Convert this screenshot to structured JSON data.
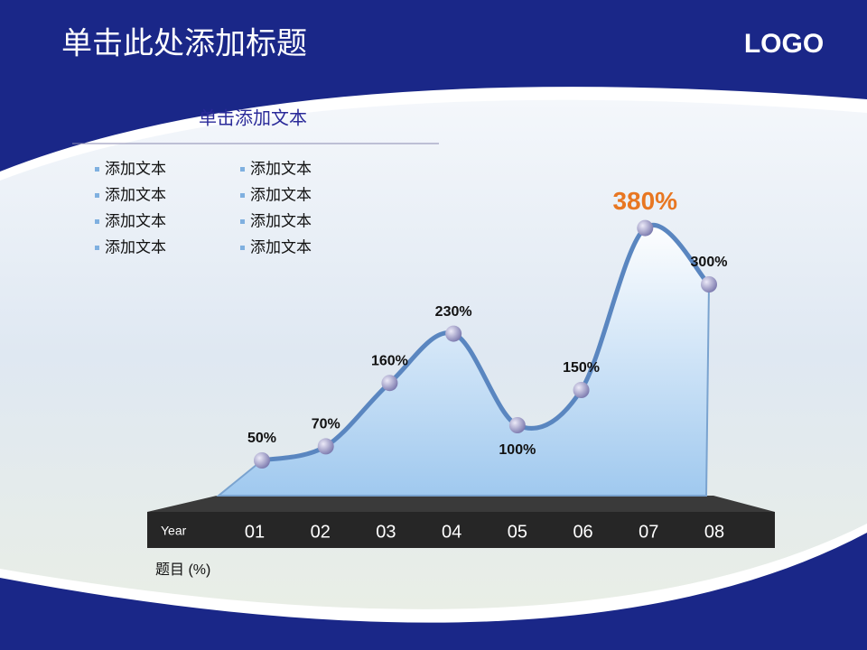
{
  "header": {
    "title": "单击此处添加标题",
    "logo": "LOGO"
  },
  "text_block": {
    "heading": "单击添加文本",
    "items": [
      "添加文本",
      "添加文本",
      "添加文本",
      "添加文本",
      "添加文本",
      "添加文本",
      "添加文本",
      "添加文本"
    ]
  },
  "chart_data": {
    "type": "line",
    "x_label": "Year",
    "y_label": "题目  (%)",
    "categories": [
      "01",
      "02",
      "03",
      "04",
      "05",
      "06",
      "07",
      "08"
    ],
    "values": [
      50,
      70,
      160,
      230,
      100,
      150,
      380,
      300
    ],
    "value_labels": [
      "50%",
      "70%",
      "160%",
      "230%",
      "100%",
      "150%",
      "380%",
      "300%"
    ],
    "color": "#5a86c0",
    "area": true
  }
}
